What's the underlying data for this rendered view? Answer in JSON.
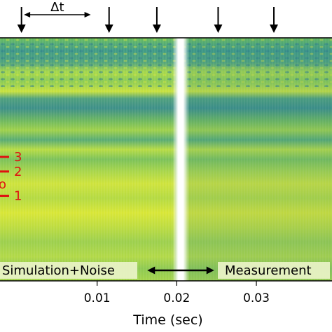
{
  "chart_data": {
    "type": "heatmap",
    "xlabel": "Time (sec)",
    "xlim": [
      -0.0022,
      0.0395
    ],
    "x_ticks": [
      {
        "value": 0.01,
        "label": "0.01"
      },
      {
        "value": 0.02,
        "label": "0.02"
      },
      {
        "value": 0.03,
        "label": "0.03"
      }
    ],
    "event_arrows": [
      0.0005,
      0.0115,
      0.0175,
      0.0252,
      0.0322
    ],
    "delta_t": {
      "label": "Δt",
      "from": 0.0008,
      "to": 0.0092
    },
    "separator_time": 0.0205,
    "transition_arrow": {
      "from": 0.0163,
      "to": 0.0247
    },
    "regions": [
      {
        "name": "simulation",
        "label": "Simulation+Noise"
      },
      {
        "name": "measurement",
        "label": "Measurement"
      }
    ],
    "mode_markers": [
      {
        "label": "3",
        "level": 0.49
      },
      {
        "label": "2",
        "level": 0.55
      },
      {
        "label": "1",
        "level": 0.65
      }
    ],
    "partial_label": "o",
    "colormap": "viridis",
    "colors": {
      "low": "#3b8f8c",
      "mid": "#5fb46a",
      "high": "#d5e538",
      "marker": "#e01010",
      "separator": "#ffffff"
    }
  }
}
